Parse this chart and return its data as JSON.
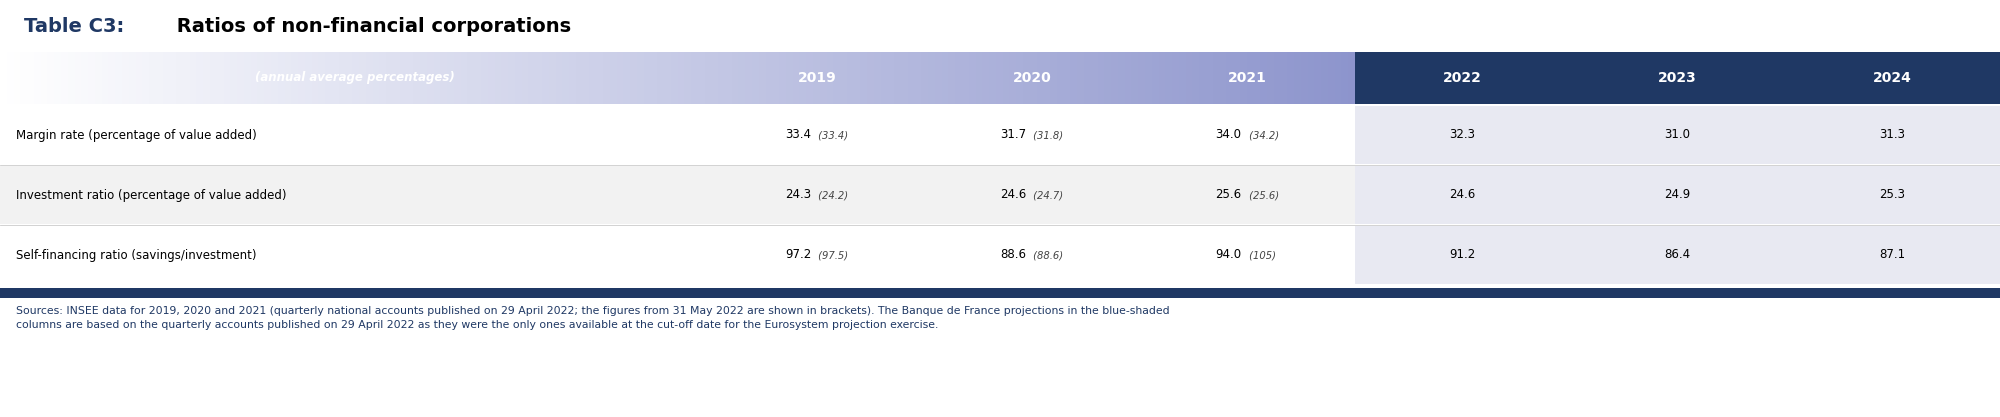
{
  "title_bold": "Table C3:",
  "title_regular": " Ratios of non-financial corporations",
  "header_label": "(annual average percentages)",
  "columns": [
    "2019",
    "2020",
    "2021",
    "2022",
    "2023",
    "2024"
  ],
  "rows": [
    {
      "label": "Margin rate (percentage of value added)",
      "values": [
        "33.4",
        "(33.4)",
        "31.7",
        "(31.8)",
        "34.0",
        "(34.2)",
        "32.3",
        "31.0",
        "31.3"
      ]
    },
    {
      "label": "Investment ratio (percentage of value added)",
      "values": [
        "24.3",
        "(24.2)",
        "24.6",
        "(24.7)",
        "25.6",
        "(25.6)",
        "24.6",
        "24.9",
        "25.3"
      ]
    },
    {
      "label": "Self-financing ratio (savings/investment)",
      "values": [
        "97.2",
        "(97.5)",
        "88.6",
        "(88.6)",
        "94.0",
        "(105)",
        "91.2",
        "86.4",
        "87.1"
      ]
    }
  ],
  "sources_text": "Sources: INSEE data for 2019, 2020 and 2021 (quarterly national accounts published on 29 April 2022; the figures from 31 May 2022 are shown in brackets). The Banque de France projections in the blue-shaded columns are based on the quarterly accounts published on 29 April 2022 as they were the only ones available at the cut-off date for the Eurosystem projection exercise.",
  "dark_blue": "#1F3864",
  "light_blue_shade": "#C8CEDE",
  "light_lavender": "#E8E9F2",
  "row_bg_white": "#FFFFFF",
  "row_bg_light": "#F2F2F2",
  "source_text_color": "#1F3864",
  "header_text_color": "#FFFFFF",
  "row_text_color": "#000000",
  "title_blue_color": "#1F3864",
  "fig_width": 20.0,
  "fig_height": 4.17,
  "dpi": 100
}
